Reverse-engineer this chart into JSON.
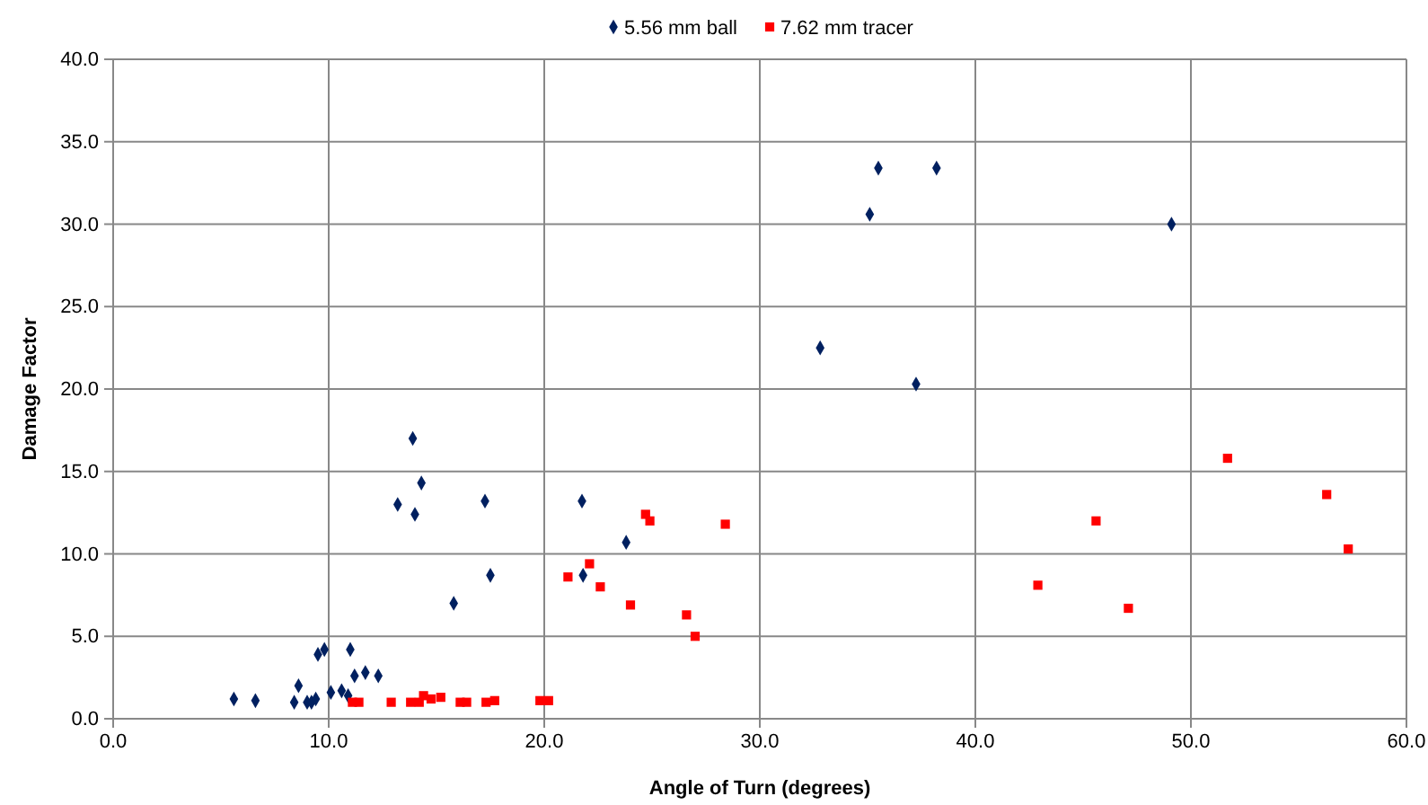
{
  "chart_data": {
    "type": "scatter",
    "xlabel": "Angle of Turn (degrees)",
    "ylabel": "Damage Factor",
    "xlim": [
      0,
      60
    ],
    "ylim": [
      0,
      40
    ],
    "xticks": [
      {
        "value": 0,
        "label": "0.0"
      },
      {
        "value": 10,
        "label": "10.0"
      },
      {
        "value": 20,
        "label": "20.0"
      },
      {
        "value": 30,
        "label": "30.0"
      },
      {
        "value": 40,
        "label": "40.0"
      },
      {
        "value": 50,
        "label": "50.0"
      },
      {
        "value": 60,
        "label": "60.0"
      }
    ],
    "yticks": [
      {
        "value": 0,
        "label": "0.0"
      },
      {
        "value": 5,
        "label": "5.0"
      },
      {
        "value": 10,
        "label": "10.0"
      },
      {
        "value": 15,
        "label": "15.0"
      },
      {
        "value": 20,
        "label": "20.0"
      },
      {
        "value": 25,
        "label": "25.0"
      },
      {
        "value": 30,
        "label": "30.0"
      },
      {
        "value": 35,
        "label": "35.0"
      },
      {
        "value": 40,
        "label": "40.0"
      }
    ],
    "grid": true,
    "legend": "top",
    "series": [
      {
        "name": "5.56 mm ball",
        "color": "#002060",
        "marker": "diamond",
        "x": [
          5.6,
          6.6,
          8.4,
          8.6,
          9.0,
          9.2,
          9.4,
          9.5,
          9.8,
          11.0,
          10.1,
          10.6,
          10.9,
          11.2,
          11.7,
          12.3,
          13.2,
          13.9,
          14.0,
          14.3,
          15.8,
          17.25,
          17.5,
          21.75,
          21.8,
          23.8,
          32.8,
          35.1,
          35.5,
          37.25,
          38.2,
          49.1
        ],
        "values": [
          1.2,
          1.1,
          1.0,
          2.0,
          1.0,
          1.0,
          1.2,
          3.9,
          4.2,
          4.2,
          1.6,
          1.7,
          1.4,
          2.6,
          2.8,
          2.6,
          13.0,
          17.0,
          12.4,
          14.3,
          7.0,
          13.2,
          8.7,
          13.2,
          8.7,
          10.7,
          22.5,
          30.6,
          33.4,
          20.3,
          33.4,
          30.0
        ]
      },
      {
        "name": "7.62 mm tracer",
        "color": "#ff0000",
        "marker": "square",
        "x": [
          11.1,
          11.4,
          12.9,
          13.8,
          14.2,
          14.4,
          14.75,
          15.2,
          16.1,
          16.4,
          17.3,
          17.7,
          19.8,
          20.2,
          21.1,
          22.1,
          22.6,
          24.0,
          24.7,
          24.9,
          26.6,
          27.0,
          28.4,
          42.9,
          45.6,
          47.1,
          51.7,
          56.3,
          57.3
        ],
        "values": [
          1.0,
          1.0,
          1.0,
          1.0,
          1.0,
          1.4,
          1.2,
          1.3,
          1.0,
          1.0,
          1.0,
          1.1,
          1.1,
          1.1,
          8.6,
          9.4,
          8.0,
          6.9,
          12.4,
          12.0,
          6.3,
          5.0,
          11.8,
          8.1,
          12.0,
          6.7,
          15.8,
          13.6,
          10.3
        ]
      }
    ]
  }
}
